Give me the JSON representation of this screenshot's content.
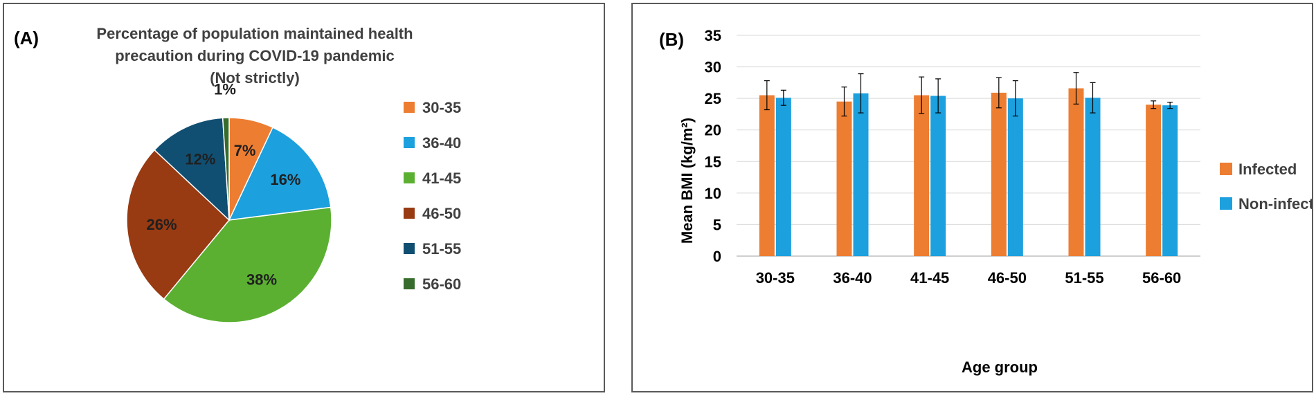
{
  "chart_data": [
    {
      "type": "pie",
      "panel_label": "(A)",
      "title": [
        "Percentage of population  maintained health",
        "precaution  during COVID-19 pandemic",
        "(Not strictly)"
      ],
      "categories": [
        "30-35",
        "36-40",
        "41-45",
        "46-50",
        "51-55",
        "56-60"
      ],
      "values": [
        7,
        16,
        38,
        26,
        12,
        1
      ],
      "value_labels": [
        "7%",
        "16%",
        "38%",
        "26%",
        "12%",
        "1%"
      ],
      "colors": [
        "#ED7D31",
        "#1CA0DE",
        "#5BB031",
        "#983A12",
        "#114F72",
        "#376C2C"
      ],
      "legend_position": "right"
    },
    {
      "type": "bar",
      "panel_label": "(B)",
      "categories": [
        "30-35",
        "36-40",
        "41-45",
        "46-50",
        "51-55",
        "56-60"
      ],
      "series": [
        {
          "name": "Infected",
          "color": "#ED7D31",
          "values": [
            25.5,
            24.5,
            25.5,
            25.9,
            26.6,
            24.0
          ],
          "errors": [
            2.3,
            2.3,
            2.9,
            2.4,
            2.5,
            0.6
          ]
        },
        {
          "name": "Non-infected",
          "color": "#1CA0DE",
          "values": [
            25.1,
            25.8,
            25.4,
            25.0,
            25.1,
            23.9
          ],
          "errors": [
            1.2,
            3.1,
            2.7,
            2.8,
            2.4,
            0.5
          ]
        }
      ],
      "xlabel": "Age group",
      "ylabel": "Mean BMI   (kg/m²)",
      "ylim": [
        0,
        35
      ],
      "yticks": [
        0,
        5,
        10,
        15,
        20,
        25,
        30,
        35
      ],
      "grid": true,
      "legend_position": "right"
    }
  ]
}
